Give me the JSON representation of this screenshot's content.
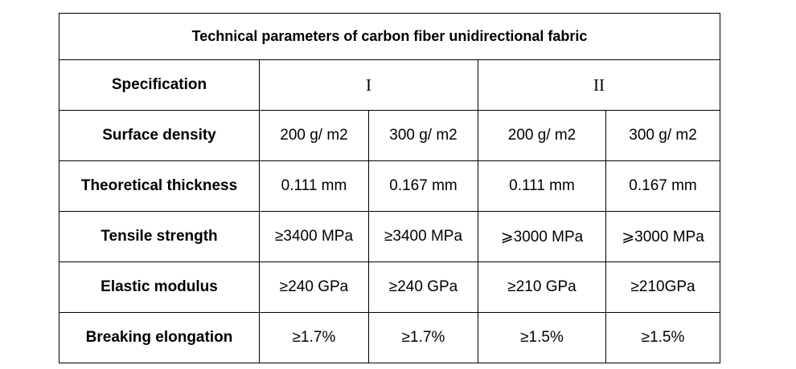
{
  "table": {
    "title": "Technical parameters of carbon fiber unidirectional fabric",
    "header": {
      "label": "Specification",
      "groups": [
        "I",
        "II"
      ]
    },
    "rows": [
      {
        "label": "Surface density",
        "cells": [
          "200 g/ m2",
          "300 g/ m2",
          "200 g/ m2",
          "300 g/ m2"
        ]
      },
      {
        "label": "Theoretical thickness",
        "cells": [
          "0.111 mm",
          "0.167 mm",
          "0.111 mm",
          "0.167 mm"
        ]
      },
      {
        "label": "Tensile strength",
        "cells": [
          "≥3400 MPa",
          "≥3400 MPa",
          "⩾3000 MPa",
          "⩾3000 MPa"
        ]
      },
      {
        "label": "Elastic modulus",
        "cells": [
          "≥240 GPa",
          "≥240 GPa",
          "≥210 GPa",
          "≥210GPa"
        ]
      },
      {
        "label": "Breaking elongation",
        "cells": [
          "≥1.7%",
          "≥1.7%",
          "≥1.5%",
          "≥1.5%"
        ]
      }
    ]
  }
}
